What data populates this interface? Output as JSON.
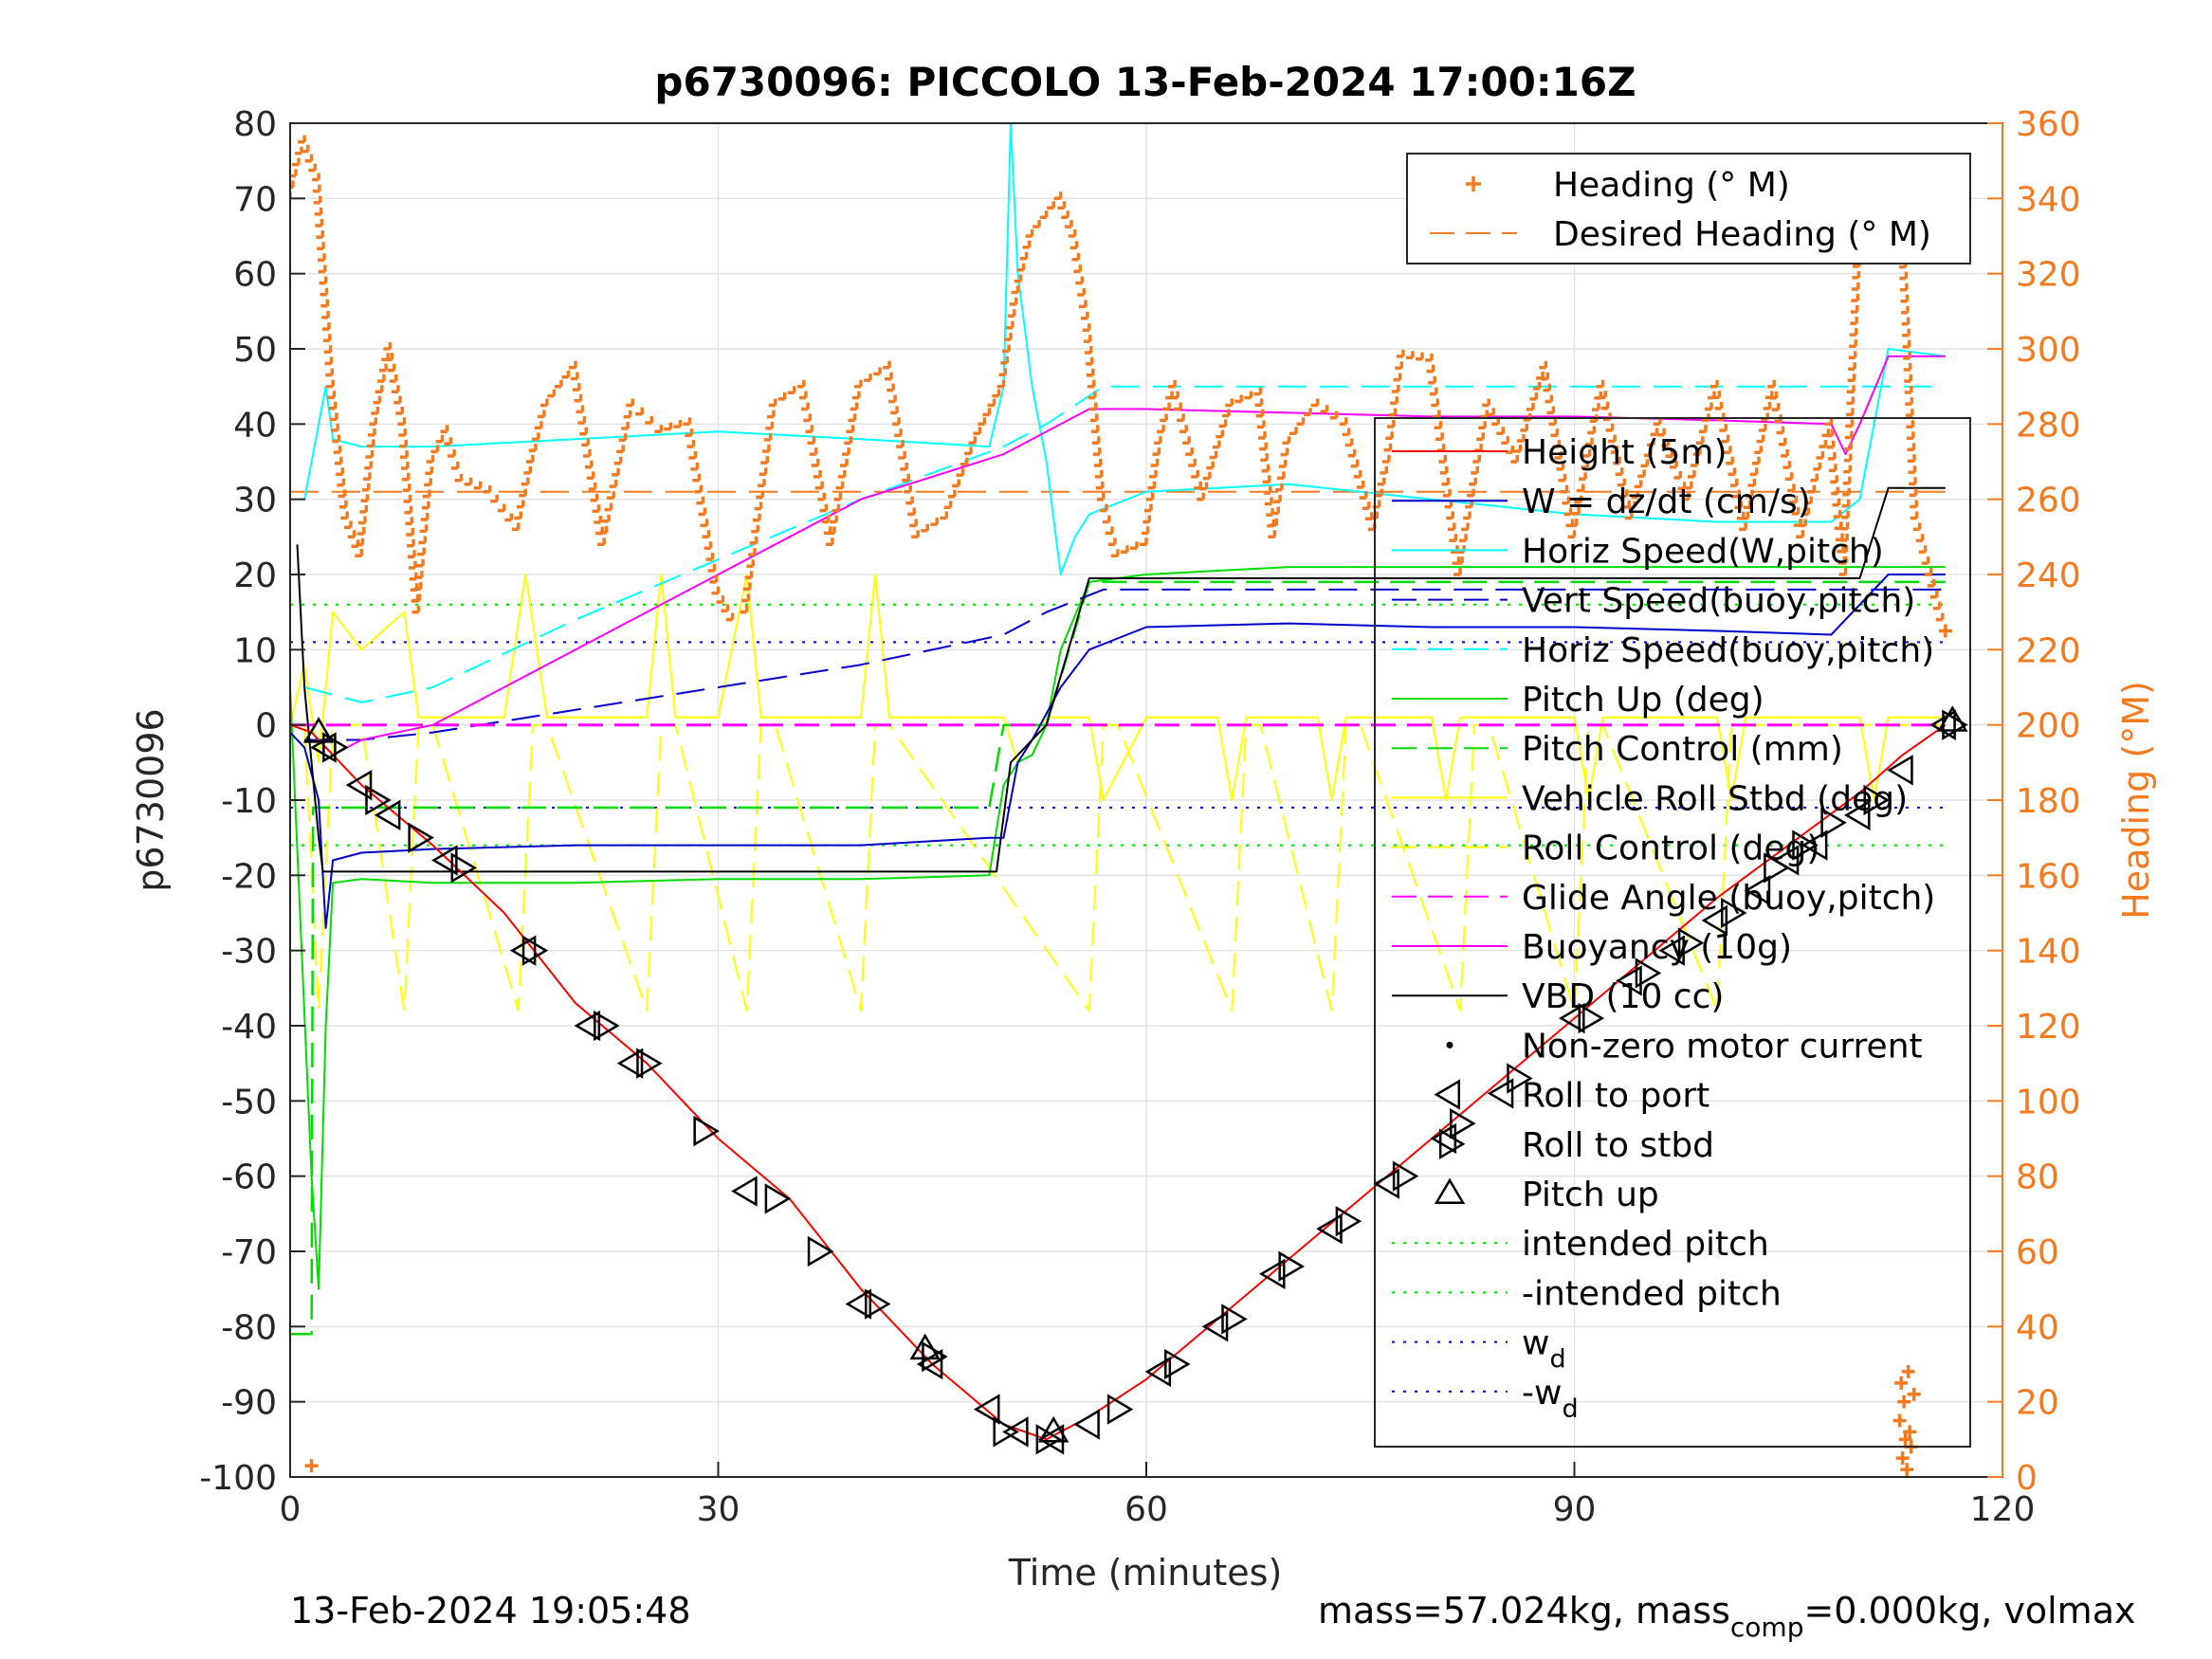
{
  "chart_data": {
    "type": "line",
    "title": "p6730096: PICCOLO 13-Feb-2024 17:00:16Z",
    "xlabel": "Time (minutes)",
    "ylabel": "p6730096",
    "ylabel_right": "Heading (°M)",
    "xlim": [
      0,
      120
    ],
    "ylim": [
      -100,
      80
    ],
    "ylim_right": [
      0,
      360
    ],
    "xticks": [
      "0",
      "30",
      "60",
      "90",
      "120"
    ],
    "yticks": [
      "-100",
      "-90",
      "-80",
      "-70",
      "-60",
      "-50",
      "-40",
      "-30",
      "-20",
      "-10",
      "0",
      "10",
      "20",
      "30",
      "40",
      "50",
      "60",
      "70",
      "80"
    ],
    "yticks_right": [
      "0",
      "20",
      "40",
      "60",
      "80",
      "100",
      "120",
      "140",
      "160",
      "180",
      "200",
      "220",
      "240",
      "260",
      "280",
      "300",
      "320",
      "340",
      "360"
    ],
    "grid": true,
    "footer_left": "13-Feb-2024 19:05:48",
    "footer_right_parts": [
      "mass=57.024kg, mass",
      "comp",
      "=0.000kg, volmax"
    ],
    "colors": {
      "heading": "#f47a20",
      "height": "#ff0000",
      "w": "#0000cd",
      "horiz": "#00ffff",
      "vert_buoy": "#0000cd",
      "horiz_buoy": "#00ffff",
      "pitch": "#00dd00",
      "pitch_ctrl": "#00dd00",
      "roll": "#ffff00",
      "roll_ctrl": "#ffff00",
      "glide": "#ff00ff",
      "buoy": "#ff00ff",
      "vbd": "#000000",
      "intended": "#00dd00",
      "wd": "#0000cd"
    },
    "legend_top": [
      {
        "label": "Heading (° M)",
        "style": "plus",
        "color": "#f47a20"
      },
      {
        "label": "Desired Heading (° M)",
        "style": "dash",
        "color": "#f47a20"
      }
    ],
    "legend_main": [
      {
        "label": "Height (5m)",
        "style": "solid",
        "color": "#ff0000"
      },
      {
        "label": "W = dz/dt (cm/s)",
        "style": "solid",
        "color": "#0000cd"
      },
      {
        "label": "Horiz Speed(W,pitch)",
        "style": "solid",
        "color": "#00ffff"
      },
      {
        "label": "Vert Speed(buoy,pitch)",
        "style": "dash",
        "color": "#0000cd"
      },
      {
        "label": "Horiz Speed(buoy,pitch)",
        "style": "dash",
        "color": "#00ffff"
      },
      {
        "label": "Pitch Up (deg)",
        "style": "solid",
        "color": "#00dd00"
      },
      {
        "label": "Pitch Control (mm)",
        "style": "dash",
        "color": "#00dd00"
      },
      {
        "label": "Vehicle Roll Stbd (deg)",
        "style": "solid",
        "color": "#ffff00"
      },
      {
        "label": "Roll Control (deg)",
        "style": "dash",
        "color": "#ffff00"
      },
      {
        "label": "Glide Angle (buoy,pitch)",
        "style": "dash",
        "color": "#ff00ff"
      },
      {
        "label": "Buoyancy (10g)",
        "style": "solid",
        "color": "#ff00ff"
      },
      {
        "label": "VBD (10 cc)",
        "style": "solid",
        "color": "#000000"
      },
      {
        "label": "Non-zero motor current",
        "style": "dot",
        "color": "#000000"
      },
      {
        "label": "Roll to port",
        "style": "tri-left",
        "color": "#000000"
      },
      {
        "label": "Roll to stbd",
        "style": "tri-right",
        "color": "#000000"
      },
      {
        "label": "Pitch up",
        "style": "tri-up",
        "color": "#000000"
      },
      {
        "label": "intended pitch",
        "style": "dotted",
        "color": "#00dd00"
      },
      {
        "label": "-intended pitch",
        "style": "dotted",
        "color": "#00dd00"
      },
      {
        "label": "w",
        "sub": "d",
        "style": "dotted",
        "color": "#0000cd"
      },
      {
        "label": "-w",
        "sub": "d",
        "style": "dotted",
        "color": "#0000cd"
      }
    ],
    "desired_heading": 262,
    "intended_pitch": 16,
    "wd": 11,
    "series": {
      "height": {
        "x": [
          0,
          1.5,
          5,
          10,
          15,
          20,
          25,
          30,
          35,
          40,
          45,
          50,
          53,
          56,
          60,
          65,
          70,
          75,
          80,
          85,
          90,
          95,
          100,
          105,
          110,
          113,
          116
        ],
        "y": [
          0,
          -1,
          -8,
          -16,
          -25,
          -37,
          -45,
          -55,
          -63,
          -75,
          -85,
          -93,
          -95,
          -92,
          -87,
          -79,
          -71,
          -63,
          -55,
          -47,
          -39,
          -31,
          -23,
          -16,
          -9,
          -4,
          0
        ]
      },
      "vbd": {
        "x": [
          0.5,
          1,
          1.5,
          2,
          2.3,
          10,
          20,
          30,
          40,
          49.5,
          50.5,
          53,
          56,
          60,
          70,
          80,
          90,
          100,
          108,
          110,
          112,
          116
        ],
        "y": [
          24,
          5,
          -5,
          -15,
          -19.5,
          -19.5,
          -19.5,
          -19.5,
          -19.5,
          -19.5,
          -5,
          0,
          19.5,
          19.5,
          19.5,
          19.5,
          19.5,
          19.5,
          19.5,
          19.5,
          31.5,
          31.5
        ]
      },
      "w": {
        "x": [
          0,
          1,
          2,
          2.5,
          3,
          5,
          10,
          20,
          30,
          40,
          49,
          50,
          51,
          52,
          54,
          56,
          60,
          70,
          80,
          90,
          100,
          108,
          112,
          116
        ],
        "y": [
          -1,
          -3,
          -10,
          -27,
          -18,
          -17,
          -16.5,
          -16,
          -16,
          -16,
          -15,
          -15,
          -5,
          -2,
          5,
          10,
          13,
          13.5,
          13,
          13,
          12.5,
          12,
          20,
          20
        ]
      },
      "horiz": {
        "x": [
          1,
          2,
          2.5,
          3,
          5,
          10,
          20,
          30,
          40,
          49,
          50,
          50.5,
          51,
          52,
          53,
          54,
          55,
          56,
          60,
          70,
          80,
          90,
          100,
          108,
          110,
          112,
          116
        ],
        "y": [
          30,
          40,
          45,
          38,
          37,
          37,
          38,
          39,
          38,
          37,
          45,
          80,
          60,
          45,
          35,
          20,
          25,
          28,
          31,
          32,
          30,
          28,
          27,
          27,
          30,
          50,
          49
        ]
      },
      "vert_buoy": {
        "x": [
          1,
          5,
          10,
          20,
          30,
          40,
          50,
          53,
          57,
          60,
          80,
          100,
          110,
          116
        ],
        "y": [
          -2,
          -2,
          -1,
          2,
          5,
          8,
          12,
          15,
          18,
          18,
          18,
          18,
          18,
          18
        ]
      },
      "horiz_buoy": {
        "x": [
          1,
          5,
          10,
          20,
          30,
          40,
          50,
          53,
          57,
          60,
          80,
          100,
          110,
          116
        ],
        "y": [
          5,
          3,
          5,
          14,
          22,
          30,
          37,
          40,
          45,
          45,
          45,
          45,
          45,
          45
        ]
      },
      "pitch": {
        "x": [
          0,
          1.5,
          2,
          2.5,
          3,
          5,
          10,
          20,
          30,
          40,
          49,
          50,
          51,
          52,
          53,
          54,
          56,
          60,
          70,
          80,
          90,
          100,
          108,
          112,
          116
        ],
        "y": [
          5,
          -60,
          -75,
          -40,
          -21,
          -20.5,
          -21,
          -21,
          -20.5,
          -20.5,
          -20,
          -8,
          -5,
          -4,
          0,
          10,
          19,
          20,
          21,
          21,
          21,
          21,
          21,
          21,
          21
        ]
      },
      "pitch_ctrl": {
        "x": [
          0,
          1.5,
          1.6,
          3,
          10,
          20,
          30,
          40,
          49,
          50,
          53,
          56,
          60,
          70,
          80,
          90,
          100,
          108,
          112,
          116
        ],
        "y": [
          -81,
          -81,
          -11,
          -11,
          -11,
          -11,
          -11,
          -11,
          -11,
          0,
          0,
          19,
          19,
          19,
          19,
          19,
          19,
          19,
          19,
          19
        ]
      },
      "roll": {
        "x": [
          0,
          1,
          2,
          3,
          5,
          8,
          9,
          10,
          15,
          16.5,
          18,
          25,
          26,
          27,
          30,
          32,
          33,
          40,
          41,
          42,
          50,
          51,
          53,
          56,
          57,
          60,
          65,
          66,
          67,
          72,
          73,
          74,
          80,
          81,
          82,
          90,
          91,
          92,
          100,
          101,
          102,
          110,
          111,
          112,
          116
        ],
        "y": [
          0,
          8,
          -5,
          15,
          10,
          15,
          1,
          1,
          1,
          20,
          1,
          1,
          20,
          1,
          1,
          20,
          1,
          1,
          20,
          1,
          1,
          -5,
          1,
          1,
          -10,
          1,
          1,
          -10,
          1,
          1,
          -10,
          1,
          1,
          -10,
          1,
          1,
          -10,
          1,
          1,
          -10,
          1,
          1,
          -10,
          1,
          1
        ]
      },
      "roll_ctrl": {
        "x": [
          1,
          2,
          3,
          5,
          8,
          9,
          10,
          16,
          17,
          18,
          25,
          26,
          27,
          32,
          33,
          34,
          40,
          41,
          42,
          56,
          57,
          58,
          66,
          67,
          68,
          73,
          74,
          75,
          82,
          83,
          84,
          90,
          91,
          92,
          100,
          101,
          102,
          110,
          112,
          116
        ],
        "y": [
          0,
          -38,
          0,
          0,
          -38,
          0,
          0,
          -38,
          0,
          0,
          -38,
          0,
          0,
          -38,
          0,
          0,
          -38,
          0,
          0,
          -38,
          0,
          0,
          -38,
          0,
          0,
          -38,
          0,
          0,
          -38,
          0,
          0,
          -38,
          0,
          0,
          -38,
          0,
          0,
          0,
          0,
          0
        ]
      },
      "glide": {
        "x": [
          0,
          116
        ],
        "y": [
          0,
          0
        ]
      },
      "buoy": {
        "x": [
          2,
          3,
          5,
          10,
          20,
          30,
          40,
          50,
          56,
          60,
          70,
          80,
          90,
          100,
          108,
          109,
          110,
          112,
          116
        ],
        "y": [
          -2,
          -4,
          -2,
          0,
          10,
          20,
          30,
          36,
          42,
          42,
          41.5,
          41,
          41,
          40.5,
          40,
          36,
          40,
          49,
          49
        ]
      },
      "heading": {
        "x": [
          0,
          1,
          2,
          3,
          4,
          5,
          6,
          7,
          8,
          9,
          10,
          11,
          12,
          14,
          16,
          17,
          18,
          20,
          22,
          24,
          26,
          28,
          30,
          31,
          32,
          34,
          36,
          38,
          40,
          42,
          44,
          46,
          48,
          50,
          51,
          52,
          53,
          54,
          55,
          56,
          57,
          58,
          60,
          61,
          62,
          64,
          66,
          68,
          69,
          70,
          72,
          74,
          76,
          77,
          78,
          80,
          82,
          84,
          86,
          88,
          90,
          92,
          94,
          96,
          98,
          100,
          102,
          104,
          106,
          108,
          109,
          110,
          111,
          112,
          113,
          114,
          116
        ],
        "y": [
          340,
          355,
          345,
          290,
          255,
          245,
          280,
          300,
          280,
          230,
          270,
          278,
          265,
          262,
          252,
          270,
          285,
          295,
          248,
          285,
          278,
          280,
          235,
          228,
          230,
          285,
          290,
          248,
          290,
          295,
          250,
          255,
          275,
          290,
          315,
          330,
          335,
          340,
          330,
          305,
          260,
          245,
          248,
          275,
          290,
          260,
          285,
          288,
          250,
          275,
          285,
          280,
          252,
          270,
          298,
          297,
          240,
          285,
          270,
          295,
          250,
          290,
          255,
          280,
          260,
          290,
          252,
          290,
          250,
          280,
          240,
          325,
          330,
          350,
          340,
          255,
          225
        ]
      },
      "heading_outliers": {
        "x": [
          1.5,
          112.8,
          112.9,
          113.0,
          113.1,
          113.2,
          113.3,
          113.4,
          113.5,
          113.6,
          113.8
        ],
        "y": [
          3,
          15,
          25,
          5,
          20,
          10,
          2,
          28,
          12,
          8,
          22
        ]
      },
      "roll_port": {
        "x": [
          2.5,
          5,
          7,
          11,
          16.5,
          21,
          24,
          32,
          40,
          45,
          49,
          51,
          53.5,
          56,
          61,
          65,
          69,
          73,
          77,
          81,
          85,
          90,
          94,
          97,
          100,
          103,
          105,
          107,
          110,
          113,
          116
        ],
        "y": [
          -3,
          -8,
          -12,
          -18,
          -30,
          -40,
          -45,
          -62,
          -77,
          -85,
          -91,
          -94,
          -95,
          -93,
          -86,
          -80,
          -73,
          -67,
          -61,
          -55,
          -49,
          -39,
          -34,
          -30,
          -26,
          -22,
          -18,
          -16,
          -12,
          -6,
          0
        ]
      },
      "roll_stbd": {
        "x": [
          3,
          6,
          9,
          12,
          17,
          22,
          25,
          29,
          34,
          37,
          41,
          45,
          50,
          53,
          58,
          62,
          66,
          70,
          74,
          78,
          82,
          86,
          91,
          95,
          98,
          101,
          104,
          106,
          108,
          111,
          116.5
        ],
        "y": [
          -3,
          -10,
          -15,
          -19,
          -30,
          -40,
          -45,
          -54,
          -63,
          -70,
          -77,
          -84,
          -94,
          -95,
          -91,
          -85,
          -79,
          -72,
          -66,
          -60,
          -53,
          -47,
          -39,
          -33,
          -29,
          -25,
          -19,
          -16,
          -13,
          -10,
          0
        ]
      },
      "pitch_up": {
        "x": [
          2,
          44.5,
          53.5,
          116.5
        ],
        "y": [
          -1,
          -83,
          -94,
          0.5
        ]
      }
    }
  }
}
